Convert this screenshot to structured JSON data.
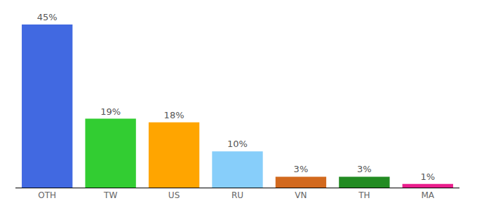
{
  "chart_data": {
    "type": "bar",
    "categories": [
      "OTH",
      "TW",
      "US",
      "RU",
      "VN",
      "TH",
      "MA"
    ],
    "values": [
      45,
      19,
      18,
      10,
      3,
      3,
      1
    ],
    "value_labels": [
      "45%",
      "19%",
      "18%",
      "10%",
      "3%",
      "3%",
      "1%"
    ],
    "colors": [
      "#4169e1",
      "#32cd32",
      "#ffa500",
      "#87cefa",
      "#d2691e",
      "#228b22",
      "#e91e8c"
    ],
    "ylim": [
      0,
      45
    ],
    "data_labels": true,
    "grid": false,
    "tick_labels": "x"
  }
}
